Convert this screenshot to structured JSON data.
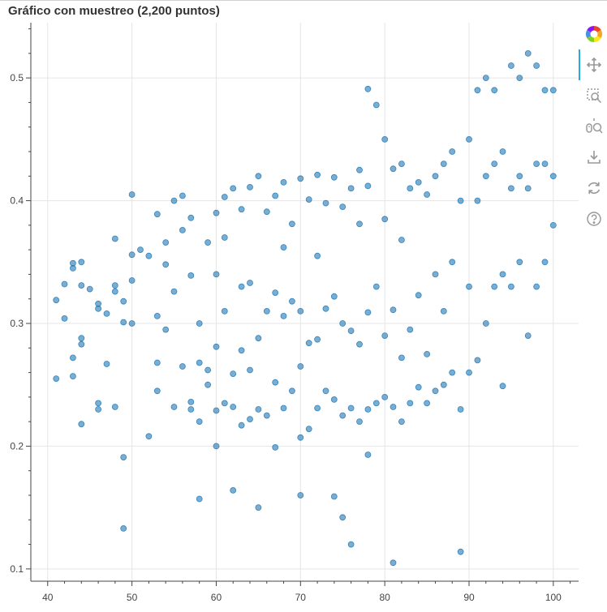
{
  "title": "Gráfico con muestreo (2,200 puntos)",
  "colors": {
    "point": "#1f77b4",
    "grid": "#e5e5e5",
    "axis": "#444444",
    "tool": "#999999",
    "active": "#26aae1"
  },
  "toolbar": {
    "tools": [
      {
        "name": "bokeh-logo-icon",
        "interactable": true
      },
      {
        "name": "pan-tool-icon",
        "interactable": true,
        "active": true
      },
      {
        "name": "box-zoom-tool-icon",
        "interactable": true
      },
      {
        "name": "wheel-zoom-tool-icon",
        "interactable": true
      },
      {
        "name": "save-tool-icon",
        "interactable": true
      },
      {
        "name": "reset-tool-icon",
        "interactable": true
      },
      {
        "name": "help-tool-icon",
        "interactable": true
      }
    ]
  },
  "chart_data": {
    "type": "scatter",
    "title": "Gráfico con muestreo (2,200 puntos)",
    "xlabel": "",
    "ylabel": "",
    "xlim": [
      38,
      103
    ],
    "ylim": [
      0.09,
      0.545
    ],
    "xticks": [
      40,
      50,
      60,
      70,
      80,
      90,
      100
    ],
    "yticks": [
      0.1,
      0.2,
      0.3,
      0.4,
      0.5
    ],
    "xtick_labels": [
      "40",
      "50",
      "60",
      "70",
      "80",
      "90",
      "100"
    ],
    "ytick_labels": [
      "0.1",
      "0.2",
      "0.3",
      "0.4",
      "0.5"
    ],
    "grid": true,
    "legend": "none",
    "marker_alpha": 0.6,
    "series": [
      {
        "x": [
          41,
          41,
          42,
          42,
          43,
          43,
          43,
          43,
          44,
          44,
          44,
          44,
          44,
          45,
          46,
          46,
          46,
          46,
          47,
          47,
          48,
          48,
          48,
          48,
          49,
          49,
          49,
          49,
          50,
          50,
          50,
          50,
          51,
          52,
          52,
          53,
          53,
          53,
          53,
          54,
          54,
          54,
          55,
          55,
          55,
          56,
          56,
          56,
          57,
          57,
          57,
          57,
          58,
          58,
          58,
          58,
          59,
          59,
          59,
          60,
          60,
          60,
          60,
          60,
          61,
          61,
          61,
          61,
          62,
          62,
          62,
          62,
          63,
          63,
          63,
          63,
          64,
          64,
          64,
          64,
          65,
          65,
          65,
          65,
          66,
          66,
          66,
          67,
          67,
          67,
          67,
          68,
          68,
          68,
          68,
          69,
          69,
          69,
          70,
          70,
          70,
          70,
          70,
          71,
          71,
          71,
          72,
          72,
          72,
          72,
          73,
          73,
          73,
          74,
          74,
          74,
          74,
          75,
          75,
          75,
          75,
          76,
          76,
          76,
          76,
          77,
          77,
          77,
          77,
          78,
          78,
          78,
          78,
          78,
          79,
          79,
          79,
          80,
          80,
          80,
          80,
          81,
          81,
          81,
          81,
          82,
          82,
          82,
          82,
          83,
          83,
          83,
          84,
          84,
          84,
          85,
          85,
          85,
          86,
          86,
          86,
          87,
          87,
          87,
          88,
          88,
          88,
          89,
          89,
          89,
          90,
          90,
          90,
          91,
          91,
          91,
          92,
          92,
          92,
          93,
          93,
          93,
          94,
          94,
          94,
          95,
          95,
          95,
          96,
          96,
          96,
          97,
          97,
          97,
          98,
          98,
          98,
          99,
          99,
          99,
          100,
          100,
          100
        ],
        "y": [
          0.255,
          0.319,
          0.304,
          0.332,
          0.257,
          0.272,
          0.345,
          0.349,
          0.218,
          0.283,
          0.331,
          0.288,
          0.35,
          0.328,
          0.235,
          0.23,
          0.316,
          0.312,
          0.267,
          0.308,
          0.232,
          0.326,
          0.331,
          0.369,
          0.133,
          0.191,
          0.301,
          0.318,
          0.3,
          0.405,
          0.335,
          0.356,
          0.36,
          0.208,
          0.355,
          0.245,
          0.268,
          0.306,
          0.389,
          0.295,
          0.348,
          0.366,
          0.232,
          0.326,
          0.4,
          0.265,
          0.376,
          0.404,
          0.23,
          0.236,
          0.339,
          0.386,
          0.157,
          0.22,
          0.268,
          0.3,
          0.262,
          0.25,
          0.366,
          0.2,
          0.229,
          0.281,
          0.34,
          0.39,
          0.235,
          0.31,
          0.37,
          0.403,
          0.164,
          0.232,
          0.259,
          0.41,
          0.217,
          0.278,
          0.33,
          0.393,
          0.222,
          0.262,
          0.333,
          0.411,
          0.15,
          0.23,
          0.288,
          0.42,
          0.225,
          0.31,
          0.391,
          0.199,
          0.252,
          0.325,
          0.404,
          0.231,
          0.306,
          0.362,
          0.415,
          0.245,
          0.318,
          0.381,
          0.16,
          0.207,
          0.265,
          0.31,
          0.418,
          0.214,
          0.284,
          0.401,
          0.231,
          0.287,
          0.355,
          0.421,
          0.245,
          0.312,
          0.398,
          0.159,
          0.238,
          0.322,
          0.419,
          0.142,
          0.225,
          0.3,
          0.395,
          0.12,
          0.231,
          0.294,
          0.41,
          0.22,
          0.283,
          0.381,
          0.425,
          0.193,
          0.23,
          0.309,
          0.412,
          0.491,
          0.235,
          0.33,
          0.478,
          0.24,
          0.29,
          0.385,
          0.45,
          0.105,
          0.232,
          0.311,
          0.426,
          0.22,
          0.272,
          0.368,
          0.43,
          0.235,
          0.295,
          0.41,
          0.248,
          0.323,
          0.415,
          0.235,
          0.275,
          0.405,
          0.245,
          0.34,
          0.42,
          0.25,
          0.31,
          0.43,
          0.26,
          0.35,
          0.44,
          0.114,
          0.23,
          0.4,
          0.26,
          0.33,
          0.45,
          0.27,
          0.4,
          0.49,
          0.3,
          0.42,
          0.5,
          0.33,
          0.43,
          0.49,
          0.249,
          0.34,
          0.44,
          0.33,
          0.41,
          0.51,
          0.35,
          0.42,
          0.5,
          0.29,
          0.41,
          0.52,
          0.33,
          0.43,
          0.51,
          0.35,
          0.43,
          0.49,
          0.38,
          0.42,
          0.49
        ]
      }
    ],
    "density_note": ""
  }
}
